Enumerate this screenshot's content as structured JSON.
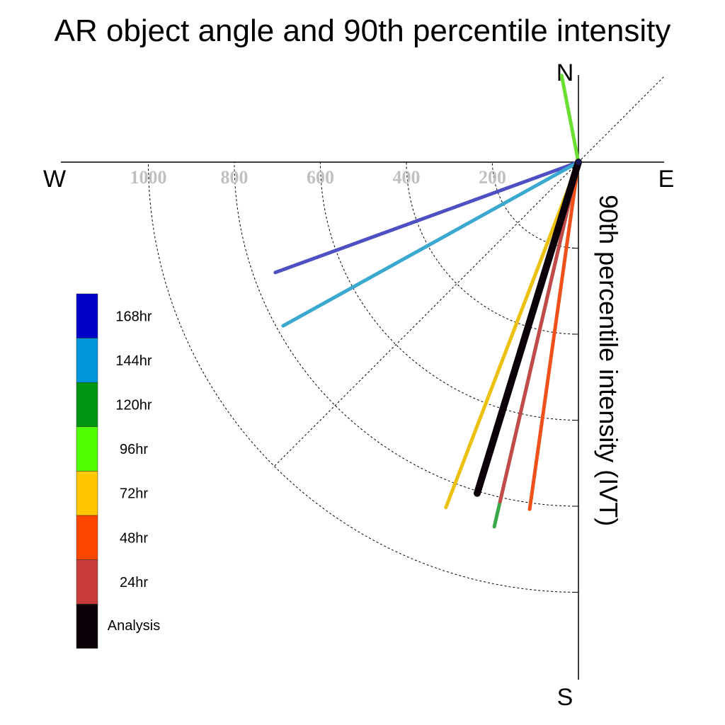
{
  "chart_data": {
    "type": "polar-vector",
    "title": "AR object angle and 90th percentile intensity",
    "ylabel": "90th percentile intensity (IVT)",
    "compass": {
      "north": "N",
      "south": "S",
      "east": "E",
      "west": "W"
    },
    "radial_ticks": [
      200,
      400,
      600,
      800,
      1000
    ],
    "radial_tick_labels": [
      "200",
      "400",
      "600",
      "800",
      "1000"
    ],
    "rmax": 1200,
    "grid": true,
    "legend_position": "left",
    "series": [
      {
        "name": "168hr",
        "color": "#0000c8",
        "line_color": "#4f4fc4",
        "angle_deg": 250,
        "intensity": 750
      },
      {
        "name": "144hr",
        "color": "#0096dc",
        "line_color": "#3ba8cf",
        "angle_deg": 241,
        "intensity": 785
      },
      {
        "name": "120hr",
        "color": "#009614",
        "line_color": "#3aa84a",
        "angle_deg": 193,
        "intensity": 870
      },
      {
        "name": "96hr",
        "color": "#50ff00",
        "line_color": "#6adf32",
        "angle_deg": 349,
        "intensity": 205
      },
      {
        "name": "72hr",
        "color": "#ffc800",
        "line_color": "#ecc00e",
        "angle_deg": 201,
        "intensity": 860
      },
      {
        "name": "48hr",
        "color": "#ff4600",
        "line_color": "#f0501a",
        "angle_deg": 188,
        "intensity": 815
      },
      {
        "name": "24hr",
        "color": "#c83c3c",
        "line_color": "#c24a4a",
        "angle_deg": 193,
        "intensity": 810
      },
      {
        "name": "Analysis",
        "color": "#0a0008",
        "line_color": "#0a0008",
        "angle_deg": 197,
        "intensity": 805
      }
    ]
  }
}
